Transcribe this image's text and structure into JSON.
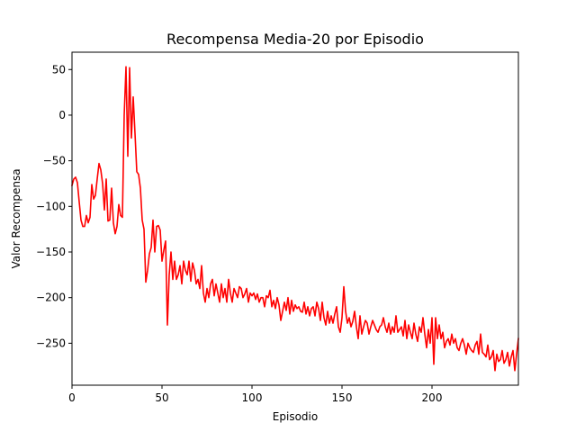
{
  "chart_data": {
    "type": "line",
    "title": "Recompensa Media-20 por Episodio",
    "xlabel": "Episodio",
    "ylabel": "Valor Recompensa",
    "xlim": [
      0,
      248
    ],
    "ylim": [
      -296,
      69
    ],
    "xticks": [
      0,
      50,
      100,
      150,
      200
    ],
    "yticks": [
      -250,
      -200,
      -150,
      -100,
      -50,
      0,
      50
    ],
    "grid": false,
    "legend": "none",
    "series": [
      {
        "color": "#ff0000",
        "points": [
          [
            0,
            -77
          ],
          [
            1,
            -70
          ],
          [
            2,
            -68
          ],
          [
            3,
            -74
          ],
          [
            4,
            -95
          ],
          [
            5,
            -115
          ],
          [
            6,
            -122
          ],
          [
            7,
            -122
          ],
          [
            8,
            -110
          ],
          [
            9,
            -118
          ],
          [
            10,
            -112
          ],
          [
            11,
            -76
          ],
          [
            12,
            -92
          ],
          [
            13,
            -88
          ],
          [
            14,
            -70
          ],
          [
            15,
            -53
          ],
          [
            16,
            -60
          ],
          [
            17,
            -75
          ],
          [
            18,
            -104
          ],
          [
            19,
            -70
          ],
          [
            20,
            -116
          ],
          [
            21,
            -115
          ],
          [
            22,
            -80
          ],
          [
            23,
            -118
          ],
          [
            24,
            -130
          ],
          [
            25,
            -122
          ],
          [
            26,
            -98
          ],
          [
            27,
            -110
          ],
          [
            28,
            -112
          ],
          [
            29,
            0
          ],
          [
            30,
            53
          ],
          [
            31,
            -45
          ],
          [
            32,
            52
          ],
          [
            33,
            -25
          ],
          [
            34,
            20
          ],
          [
            35,
            -20
          ],
          [
            36,
            -62
          ],
          [
            37,
            -65
          ],
          [
            38,
            -80
          ],
          [
            39,
            -115
          ],
          [
            40,
            -125
          ],
          [
            41,
            -183
          ],
          [
            42,
            -170
          ],
          [
            43,
            -152
          ],
          [
            44,
            -145
          ],
          [
            45,
            -115
          ],
          [
            46,
            -150
          ],
          [
            47,
            -122
          ],
          [
            48,
            -121
          ],
          [
            49,
            -126
          ],
          [
            50,
            -160
          ],
          [
            51,
            -148
          ],
          [
            52,
            -138
          ],
          [
            53,
            -230
          ],
          [
            54,
            -175
          ],
          [
            55,
            -150
          ],
          [
            56,
            -180
          ],
          [
            57,
            -160
          ],
          [
            58,
            -180
          ],
          [
            59,
            -175
          ],
          [
            60,
            -165
          ],
          [
            61,
            -185
          ],
          [
            62,
            -160
          ],
          [
            63,
            -170
          ],
          [
            64,
            -175
          ],
          [
            65,
            -160
          ],
          [
            66,
            -182
          ],
          [
            67,
            -162
          ],
          [
            68,
            -170
          ],
          [
            69,
            -185
          ],
          [
            70,
            -180
          ],
          [
            71,
            -190
          ],
          [
            72,
            -165
          ],
          [
            73,
            -195
          ],
          [
            74,
            -205
          ],
          [
            75,
            -190
          ],
          [
            76,
            -200
          ],
          [
            77,
            -185
          ],
          [
            78,
            -180
          ],
          [
            79,
            -198
          ],
          [
            80,
            -185
          ],
          [
            81,
            -195
          ],
          [
            82,
            -205
          ],
          [
            83,
            -185
          ],
          [
            84,
            -200
          ],
          [
            85,
            -190
          ],
          [
            86,
            -205
          ],
          [
            87,
            -180
          ],
          [
            88,
            -195
          ],
          [
            89,
            -205
          ],
          [
            90,
            -190
          ],
          [
            91,
            -195
          ],
          [
            92,
            -200
          ],
          [
            93,
            -188
          ],
          [
            94,
            -190
          ],
          [
            95,
            -200
          ],
          [
            96,
            -196
          ],
          [
            97,
            -190
          ],
          [
            98,
            -205
          ],
          [
            99,
            -195
          ],
          [
            100,
            -198
          ],
          [
            101,
            -195
          ],
          [
            102,
            -202
          ],
          [
            103,
            -196
          ],
          [
            104,
            -205
          ],
          [
            105,
            -200
          ],
          [
            106,
            -200
          ],
          [
            107,
            -210
          ],
          [
            108,
            -198
          ],
          [
            109,
            -200
          ],
          [
            110,
            -192
          ],
          [
            111,
            -210
          ],
          [
            112,
            -203
          ],
          [
            113,
            -212
          ],
          [
            114,
            -200
          ],
          [
            115,
            -208
          ],
          [
            116,
            -225
          ],
          [
            117,
            -215
          ],
          [
            118,
            -205
          ],
          [
            119,
            -214
          ],
          [
            120,
            -200
          ],
          [
            121,
            -218
          ],
          [
            122,
            -203
          ],
          [
            123,
            -215
          ],
          [
            124,
            -208
          ],
          [
            125,
            -212
          ],
          [
            126,
            -210
          ],
          [
            127,
            -215
          ],
          [
            128,
            -216
          ],
          [
            129,
            -205
          ],
          [
            130,
            -218
          ],
          [
            131,
            -210
          ],
          [
            132,
            -220
          ],
          [
            133,
            -212
          ],
          [
            134,
            -210
          ],
          [
            135,
            -220
          ],
          [
            136,
            -205
          ],
          [
            137,
            -212
          ],
          [
            138,
            -225
          ],
          [
            139,
            -205
          ],
          [
            140,
            -222
          ],
          [
            141,
            -230
          ],
          [
            142,
            -215
          ],
          [
            143,
            -228
          ],
          [
            144,
            -220
          ],
          [
            145,
            -228
          ],
          [
            146,
            -218
          ],
          [
            147,
            -210
          ],
          [
            148,
            -232
          ],
          [
            149,
            -238
          ],
          [
            150,
            -222
          ],
          [
            151,
            -188
          ],
          [
            152,
            -215
          ],
          [
            153,
            -228
          ],
          [
            154,
            -222
          ],
          [
            155,
            -232
          ],
          [
            156,
            -226
          ],
          [
            157,
            -215
          ],
          [
            158,
            -232
          ],
          [
            159,
            -245
          ],
          [
            160,
            -220
          ],
          [
            161,
            -240
          ],
          [
            162,
            -232
          ],
          [
            163,
            -225
          ],
          [
            164,
            -228
          ],
          [
            165,
            -240
          ],
          [
            166,
            -232
          ],
          [
            167,
            -225
          ],
          [
            168,
            -230
          ],
          [
            169,
            -235
          ],
          [
            170,
            -238
          ],
          [
            171,
            -232
          ],
          [
            172,
            -230
          ],
          [
            173,
            -222
          ],
          [
            174,
            -232
          ],
          [
            175,
            -238
          ],
          [
            176,
            -228
          ],
          [
            177,
            -240
          ],
          [
            178,
            -232
          ],
          [
            179,
            -238
          ],
          [
            180,
            -220
          ],
          [
            181,
            -238
          ],
          [
            182,
            -235
          ],
          [
            183,
            -232
          ],
          [
            184,
            -242
          ],
          [
            185,
            -225
          ],
          [
            186,
            -245
          ],
          [
            187,
            -230
          ],
          [
            188,
            -238
          ],
          [
            189,
            -245
          ],
          [
            190,
            -228
          ],
          [
            191,
            -240
          ],
          [
            192,
            -248
          ],
          [
            193,
            -232
          ],
          [
            194,
            -238
          ],
          [
            195,
            -222
          ],
          [
            196,
            -240
          ],
          [
            197,
            -255
          ],
          [
            198,
            -235
          ],
          [
            199,
            -250
          ],
          [
            200,
            -222
          ],
          [
            201,
            -273
          ],
          [
            202,
            -222
          ],
          [
            203,
            -245
          ],
          [
            204,
            -230
          ],
          [
            205,
            -245
          ],
          [
            206,
            -238
          ],
          [
            207,
            -255
          ],
          [
            208,
            -248
          ],
          [
            209,
            -245
          ],
          [
            210,
            -252
          ],
          [
            211,
            -240
          ],
          [
            212,
            -250
          ],
          [
            213,
            -245
          ],
          [
            214,
            -255
          ],
          [
            215,
            -258
          ],
          [
            216,
            -250
          ],
          [
            217,
            -245
          ],
          [
            218,
            -252
          ],
          [
            219,
            -262
          ],
          [
            220,
            -250
          ],
          [
            221,
            -255
          ],
          [
            222,
            -258
          ],
          [
            223,
            -260
          ],
          [
            224,
            -252
          ],
          [
            225,
            -248
          ],
          [
            226,
            -262
          ],
          [
            227,
            -240
          ],
          [
            228,
            -260
          ],
          [
            229,
            -262
          ],
          [
            230,
            -265
          ],
          [
            231,
            -252
          ],
          [
            232,
            -268
          ],
          [
            233,
            -265
          ],
          [
            234,
            -258
          ],
          [
            235,
            -280
          ],
          [
            236,
            -262
          ],
          [
            237,
            -270
          ],
          [
            238,
            -268
          ],
          [
            239,
            -258
          ],
          [
            240,
            -272
          ],
          [
            241,
            -268
          ],
          [
            242,
            -260
          ],
          [
            243,
            -275
          ],
          [
            244,
            -265
          ],
          [
            245,
            -258
          ],
          [
            246,
            -280
          ],
          [
            247,
            -262
          ],
          [
            248,
            -245
          ]
        ]
      }
    ]
  }
}
